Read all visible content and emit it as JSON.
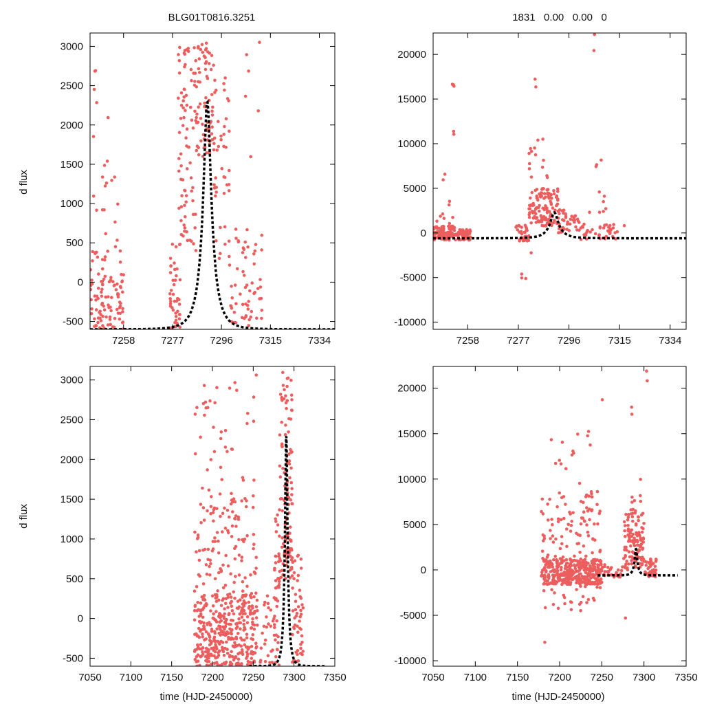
{
  "chart_data": [
    {
      "id": "top-left",
      "type": "scatter",
      "title": "BLG01T0816.3251",
      "xlabel": "",
      "ylabel": "d flux",
      "xlim": [
        7245,
        7340
      ],
      "ylim": [
        -600,
        3170
      ],
      "xticks": [
        7258,
        7277,
        7296,
        7315,
        7334
      ],
      "yticks": [
        -500,
        0,
        500,
        1000,
        1500,
        2000,
        2500,
        3000
      ],
      "model": {
        "t0": 7290.5,
        "tE": 5.2,
        "peak": 2300,
        "base": -600
      },
      "clusters": [
        {
          "x": [
            7245,
            7252
          ],
          "y": [
            -600,
            400
          ],
          "n": 60
        },
        {
          "x": [
            7246,
            7252
          ],
          "y": [
            400,
            2850
          ],
          "n": 16
        },
        {
          "x": [
            7252,
            7258
          ],
          "y": [
            -600,
            150
          ],
          "n": 45
        },
        {
          "x": [
            7253,
            7257
          ],
          "y": [
            150,
            1450
          ],
          "n": 8
        },
        {
          "x": [
            7276,
            7280
          ],
          "y": [
            -600,
            500
          ],
          "n": 45
        },
        {
          "x": [
            7279,
            7282
          ],
          "y": [
            500,
            3050
          ],
          "n": 28
        },
        {
          "x": [
            7281,
            7287
          ],
          "y": [
            200,
            3000
          ],
          "n": 55
        },
        {
          "x": [
            7286,
            7293
          ],
          "y": [
            1600,
            3100
          ],
          "n": 70
        },
        {
          "x": [
            7293,
            7299
          ],
          "y": [
            300,
            2600
          ],
          "n": 45
        },
        {
          "x": [
            7299,
            7312
          ],
          "y": [
            -600,
            700
          ],
          "n": 60
        },
        {
          "x": [
            7304,
            7312
          ],
          "y": [
            1300,
            3150
          ],
          "n": 6
        }
      ]
    },
    {
      "id": "top-right",
      "type": "scatter",
      "title": "1831   0.00   0.00   0",
      "xlabel": "",
      "ylabel": "",
      "xlim": [
        7245,
        7340
      ],
      "ylim": [
        -10800,
        22400
      ],
      "xticks": [
        7258,
        7277,
        7296,
        7315,
        7334
      ],
      "yticks": [
        -10000,
        -5000,
        0,
        5000,
        10000,
        15000,
        20000
      ],
      "model": {
        "t0": 7290.5,
        "tE": 5.2,
        "peak": 2300,
        "base": -600
      },
      "clusters": [
        {
          "x": [
            7245,
            7253
          ],
          "y": [
            -800,
            800
          ],
          "n": 90
        },
        {
          "x": [
            7253,
            7259
          ],
          "y": [
            -800,
            400
          ],
          "n": 50
        },
        {
          "x": [
            7246,
            7253
          ],
          "y": [
            1000,
            6800
          ],
          "n": 10
        },
        {
          "x": [
            7252,
            7253
          ],
          "y": [
            7000,
            18800
          ],
          "n": 5
        },
        {
          "x": [
            7276,
            7281
          ],
          "y": [
            -900,
            900
          ],
          "n": 35
        },
        {
          "x": [
            7281,
            7292
          ],
          "y": [
            800,
            5000
          ],
          "n": 120
        },
        {
          "x": [
            7281,
            7288
          ],
          "y": [
            5500,
            11000
          ],
          "n": 14
        },
        {
          "x": [
            7283,
            7284
          ],
          "y": [
            16000,
            18000
          ],
          "n": 2
        },
        {
          "x": [
            7292,
            7300
          ],
          "y": [
            0,
            3000
          ],
          "n": 40
        },
        {
          "x": [
            7300,
            7317
          ],
          "y": [
            -800,
            1000
          ],
          "n": 45
        },
        {
          "x": [
            7303,
            7310
          ],
          "y": [
            2000,
            8400
          ],
          "n": 10
        },
        {
          "x": [
            7278,
            7282
          ],
          "y": [
            -5400,
            -1000
          ],
          "n": 4
        },
        {
          "x": [
            7305,
            7306
          ],
          "y": [
            19000,
            22300
          ],
          "n": 2
        }
      ]
    },
    {
      "id": "bottom-left",
      "type": "scatter",
      "title": "",
      "xlabel": "time (HJD-2450000)",
      "ylabel": "d flux",
      "xlim": [
        7050,
        7350
      ],
      "ylim": [
        -600,
        3170
      ],
      "xticks": [
        7050,
        7100,
        7150,
        7200,
        7250,
        7300,
        7350
      ],
      "yticks": [
        -500,
        0,
        500,
        1000,
        1500,
        2000,
        2500,
        3000
      ],
      "model": {
        "t0": 7290.5,
        "tE": 5.2,
        "peak": 2300,
        "base": -600,
        "start": 7245,
        "end": 7340
      },
      "clusters": [
        {
          "x": [
            7178,
            7255
          ],
          "y": [
            -600,
            300
          ],
          "n": 380
        },
        {
          "x": [
            7178,
            7255
          ],
          "y": [
            300,
            1500
          ],
          "n": 110
        },
        {
          "x": [
            7178,
            7255
          ],
          "y": [
            1500,
            3100
          ],
          "n": 45
        },
        {
          "x": [
            7255,
            7276
          ],
          "y": [
            -600,
            300
          ],
          "n": 30
        },
        {
          "x": [
            7276,
            7282
          ],
          "y": [
            -600,
            1500
          ],
          "n": 40
        },
        {
          "x": [
            7282,
            7298
          ],
          "y": [
            500,
            3100
          ],
          "n": 120
        },
        {
          "x": [
            7298,
            7312
          ],
          "y": [
            -600,
            800
          ],
          "n": 50
        }
      ]
    },
    {
      "id": "bottom-right",
      "type": "scatter",
      "title": "",
      "xlabel": "time (HJD-2450000)",
      "ylabel": "",
      "xlim": [
        7050,
        7350
      ],
      "ylim": [
        -10600,
        22400
      ],
      "xticks": [
        7050,
        7100,
        7150,
        7200,
        7250,
        7300,
        7350
      ],
      "yticks": [
        -10000,
        -5000,
        0,
        5000,
        10000,
        15000,
        20000
      ],
      "model": {
        "t0": 7290.5,
        "tE": 5.2,
        "peak": 2300,
        "base": -600,
        "start": 7245,
        "end": 7340
      },
      "clusters": [
        {
          "x": [
            7178,
            7250
          ],
          "y": [
            -1600,
            1200
          ],
          "n": 360
        },
        {
          "x": [
            7178,
            7250
          ],
          "y": [
            1200,
            9000
          ],
          "n": 90
        },
        {
          "x": [
            7180,
            7240
          ],
          "y": [
            9000,
            15700
          ],
          "n": 14
        },
        {
          "x": [
            7178,
            7250
          ],
          "y": [
            -4500,
            -1600
          ],
          "n": 25
        },
        {
          "x": [
            7250,
            7276
          ],
          "y": [
            -800,
            600
          ],
          "n": 30
        },
        {
          "x": [
            7276,
            7300
          ],
          "y": [
            0,
            6500
          ],
          "n": 120
        },
        {
          "x": [
            7300,
            7315
          ],
          "y": [
            -800,
            1200
          ],
          "n": 45
        },
        {
          "x": [
            7283,
            7300
          ],
          "y": [
            6500,
            10000
          ],
          "n": 8
        },
        {
          "x": [
            7182,
            7183
          ],
          "y": [
            -8000,
            -7800
          ],
          "n": 1
        },
        {
          "x": [
            7250,
            7251
          ],
          "y": [
            18700,
            18900
          ],
          "n": 1
        },
        {
          "x": [
            7285,
            7286
          ],
          "y": [
            15800,
            18000
          ],
          "n": 2
        },
        {
          "x": [
            7303,
            7304
          ],
          "y": [
            19000,
            22300
          ],
          "n": 2
        },
        {
          "x": [
            7278,
            7279
          ],
          "y": [
            -5300,
            -5200
          ],
          "n": 1
        }
      ]
    }
  ]
}
